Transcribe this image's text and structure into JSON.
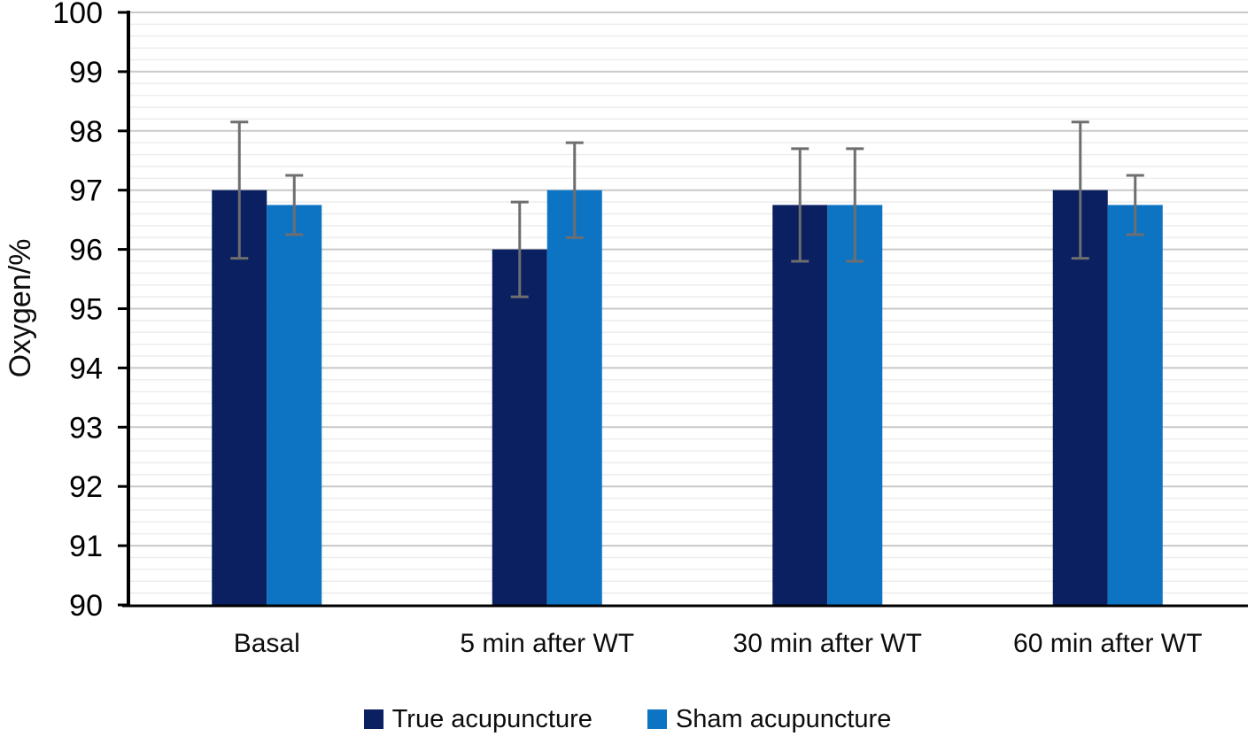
{
  "chart_data": {
    "type": "bar",
    "title": "",
    "ylabel": "Oxygen/%",
    "xlabel": "",
    "categories": [
      "Basal",
      "5 min after WT",
      "30 min after WT",
      "60 min after WT"
    ],
    "series": [
      {
        "name": "True acupuncture",
        "color": "#0a2060",
        "values": [
          97.0,
          96.0,
          96.75,
          97.0
        ],
        "errors": [
          1.15,
          0.8,
          0.95,
          1.15
        ]
      },
      {
        "name": "Sham acupuncture",
        "color": "#0d74c4",
        "values": [
          96.75,
          97.0,
          96.75,
          96.75
        ],
        "errors": [
          0.5,
          0.8,
          0.95,
          0.5
        ]
      }
    ],
    "ylim": [
      90,
      100
    ],
    "yticks": [
      90,
      91,
      92,
      93,
      94,
      95,
      96,
      97,
      98,
      99,
      100
    ],
    "minor_step": 0.2,
    "grid": true,
    "legend_position": "bottom",
    "error_bar_color": "#6e6e6e",
    "major_grid_color": "#c9c9c9",
    "minor_grid_color": "#ececec",
    "axis_color": "#000000",
    "text_color": "#0d0d0d"
  }
}
